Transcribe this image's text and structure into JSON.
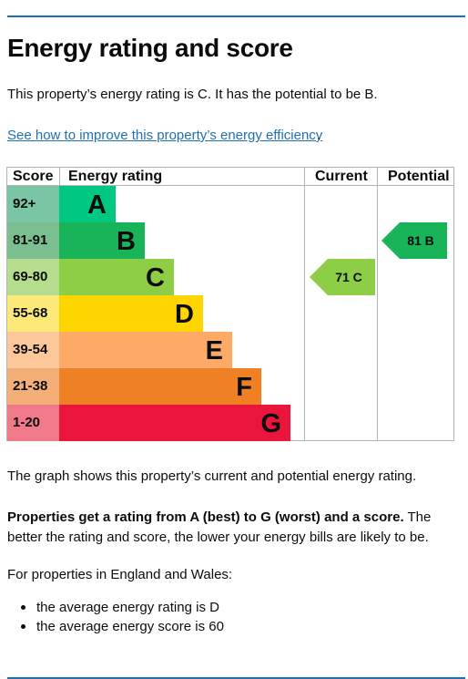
{
  "page": {
    "title": "Energy rating and score",
    "intro": "This property’s energy rating is C. It has the potential to be B.",
    "improve_link": "See how to improve this property’s energy efficiency",
    "improve_link_suffix": "."
  },
  "chart": {
    "headers": {
      "score": "Score",
      "energy_rating": "Energy rating",
      "current": "Current",
      "potential": "Potential"
    },
    "bands": [
      {
        "score": "92+",
        "letter": "A",
        "score_bg": "#79c5a4",
        "bar": "#00c781",
        "letter_color": "#0b0c0c",
        "score_color": "#0b0c0c"
      },
      {
        "score": "81-91",
        "letter": "B",
        "score_bg": "#7bbf90",
        "bar": "#19b459",
        "letter_color": "#0b0c0c",
        "score_color": "#0b0c0c"
      },
      {
        "score": "69-80",
        "letter": "C",
        "score_bg": "#b5dd8d",
        "bar": "#8dce46",
        "letter_color": "#0b0c0c",
        "score_color": "#0b0c0c"
      },
      {
        "score": "55-68",
        "letter": "D",
        "score_bg": "#fde87a",
        "bar": "#ffd500",
        "letter_color": "#0b0c0c",
        "score_color": "#0b0c0c"
      },
      {
        "score": "39-54",
        "letter": "E",
        "score_bg": "#fcc89a",
        "bar": "#fcaa65",
        "letter_color": "#0b0c0c",
        "score_color": "#0b0c0c"
      },
      {
        "score": "21-38",
        "letter": "F",
        "score_bg": "#f4ae78",
        "bar": "#ef8023",
        "letter_color": "#0b0c0c",
        "score_color": "#0b0c0c"
      },
      {
        "score": "1-20",
        "letter": "G",
        "score_bg": "#f07a8a",
        "bar": "#e9153b",
        "letter_color": "#0b0c0c",
        "score_color": "#0b0c0c"
      }
    ],
    "current": {
      "label": "71 C",
      "score": 71,
      "band": "C",
      "color": "#8dce46"
    },
    "potential": {
      "label": "81 B",
      "score": 81,
      "band": "B",
      "color": "#19b459"
    }
  },
  "body": {
    "graph_note": "The graph shows this property’s current and potential energy rating.",
    "ratings_bold": "Properties get a rating from A (best) to G (worst) and a score.",
    "ratings_rest": " The better the rating and score, the lower your energy bills are likely to be.",
    "region_note": "For properties in England and Wales:",
    "bullets": [
      "the average energy rating is D",
      "the average energy score is 60"
    ]
  }
}
